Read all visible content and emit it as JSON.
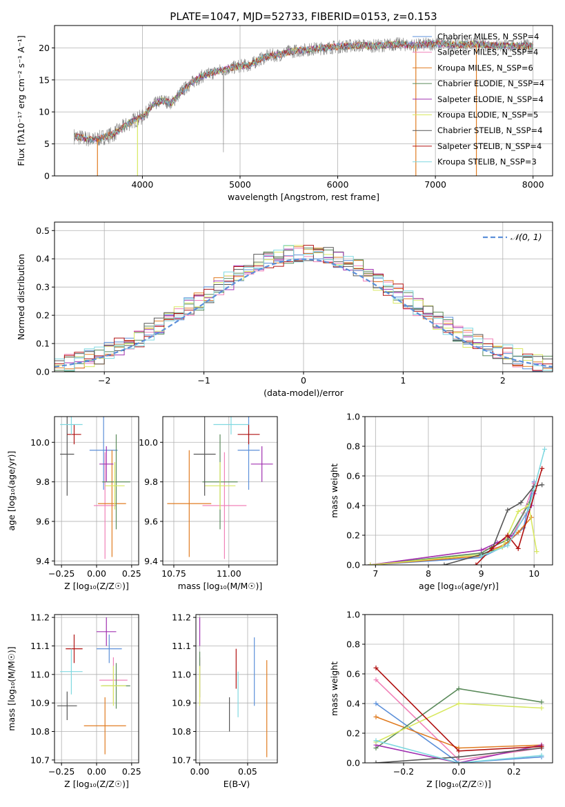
{
  "figure_title": "PLATE=1047, MJD=52733, FIBERID=0153, z=0.153",
  "colors": {
    "Chabrier MILES": "#5b8fd9",
    "Salpeter MILES": "#f080b8",
    "Kroupa MILES": "#e07b20",
    "Chabrier ELODIE": "#5a8a5a",
    "Salpeter ELODIE": "#a030b0",
    "Kroupa ELODIE": "#d8e860",
    "Chabrier STELIB": "#555555",
    "Salpeter STELIB": "#b01010",
    "Kroupa STELIB": "#7fd8e0",
    "data": "#808080",
    "normal": "#5b8fd9"
  },
  "chart_data": [
    {
      "id": "spectrum",
      "type": "line",
      "xlabel": "wavelength [Angstrom, rest frame]",
      "ylabel": "Flux [fλ10⁻¹⁷ erg cm⁻² s⁻¹ A⁻¹]",
      "xlim": [
        3100,
        8200
      ],
      "ylim": [
        0,
        23.5
      ],
      "xticks": [
        4000,
        5000,
        6000,
        7000,
        8000
      ],
      "yticks": [
        0,
        5,
        10,
        15,
        20
      ],
      "legend": [
        "Chabrier MILES, N_SSP=4",
        "Salpeter MILES, N_SSP=4",
        "Kroupa MILES, N_SSP=6",
        "Chabrier ELODIE, N_SSP=4",
        "Salpeter ELODIE, N_SSP=4",
        "Kroupa ELODIE, N_SSP=5",
        "Chabrier STELIB, N_SSP=4",
        "Salpeter STELIB, N_SSP=4",
        "Kroupa STELIB, N_SSP=3"
      ],
      "legend_position": "right",
      "continuum": [
        [
          3300,
          6.2
        ],
        [
          3500,
          5.6
        ],
        [
          3700,
          6.5
        ],
        [
          3900,
          8.6
        ],
        [
          4000,
          9.2
        ],
        [
          4100,
          11.0
        ],
        [
          4200,
          11.8
        ],
        [
          4300,
          11.4
        ],
        [
          4400,
          13.2
        ],
        [
          4500,
          14.5
        ],
        [
          4600,
          15.5
        ],
        [
          4700,
          16.0
        ],
        [
          4800,
          16.5
        ],
        [
          4900,
          16.8
        ],
        [
          5000,
          17.2
        ],
        [
          5100,
          17.3
        ],
        [
          5200,
          18.2
        ],
        [
          5300,
          18.8
        ],
        [
          5400,
          18.9
        ],
        [
          5500,
          19.4
        ],
        [
          5600,
          19.6
        ],
        [
          5800,
          19.9
        ],
        [
          6000,
          20.2
        ],
        [
          6200,
          20.4
        ],
        [
          6400,
          20.3
        ],
        [
          6600,
          20.6
        ],
        [
          6800,
          20.4
        ],
        [
          7000,
          20.7
        ],
        [
          7200,
          20.5
        ],
        [
          7400,
          20.6
        ],
        [
          7600,
          20.4
        ],
        [
          7800,
          20.3
        ],
        [
          8000,
          20.3
        ]
      ],
      "gaps": [
        [
          3540,
          0.0
        ],
        [
          3950,
          0.0
        ],
        [
          6800,
          0.0
        ],
        [
          7420,
          0.0
        ]
      ]
    },
    {
      "id": "residuals",
      "type": "histogram",
      "xlabel": "(data-model)/error",
      "ylabel": "Normed distribution",
      "xlim": [
        -2.5,
        2.5
      ],
      "ylim": [
        0,
        0.53
      ],
      "xticks": [
        -2,
        -1,
        0,
        1,
        2
      ],
      "yticks": [
        0.0,
        0.1,
        0.2,
        0.3,
        0.4,
        0.5
      ],
      "bin_width": 0.1,
      "legend": [
        "𝒩(0, 1)"
      ],
      "legend_position": "top-right"
    },
    {
      "id": "age-vs-Z",
      "type": "errorbar",
      "xlabel": "Z [log₁₀(Z/Z☉)]",
      "ylabel": "age  [log₁₀(age/yr)]",
      "xlim": [
        -0.3,
        0.3
      ],
      "ylim": [
        9.38,
        10.13
      ],
      "xticks": [
        -0.25,
        0.0,
        0.25
      ],
      "yticks": [
        9.4,
        9.6,
        9.8,
        10.0
      ],
      "points": [
        {
          "model": "Chabrier MILES",
          "x": 0.05,
          "xerr": 0.1,
          "y": 9.96,
          "yerr": 0.2
        },
        {
          "model": "Salpeter MILES",
          "x": 0.06,
          "xerr": 0.08,
          "y": 9.68,
          "yerr": 0.27
        },
        {
          "model": "Kroupa MILES",
          "x": 0.11,
          "xerr": 0.1,
          "y": 9.69,
          "yerr": 0.27
        },
        {
          "model": "Chabrier ELODIE",
          "x": 0.14,
          "xerr": 0.1,
          "y": 9.8,
          "yerr": 0.24
        },
        {
          "model": "Salpeter ELODIE",
          "x": 0.07,
          "xerr": 0.05,
          "y": 9.89,
          "yerr": 0.09
        },
        {
          "model": "Kroupa ELODIE",
          "x": 0.13,
          "xerr": 0.07,
          "y": 9.78,
          "yerr": 0.12
        },
        {
          "model": "Chabrier STELIB",
          "x": -0.21,
          "xerr": 0.05,
          "y": 9.94,
          "yerr": 0.21
        },
        {
          "model": "Salpeter STELIB",
          "x": -0.16,
          "xerr": 0.05,
          "y": 10.04,
          "yerr": 0.05
        },
        {
          "model": "Kroupa STELIB",
          "x": -0.18,
          "xerr": 0.08,
          "y": 10.09,
          "yerr": 0.05
        }
      ]
    },
    {
      "id": "age-vs-mass",
      "type": "errorbar",
      "xlabel": "mass [log₁₀(M/M☉)]",
      "ylabel": "",
      "xlim": [
        10.7,
        11.22
      ],
      "ylim": [
        9.38,
        10.13
      ],
      "xticks": [
        10.75,
        11.0
      ],
      "xticklabels": [
        "10.75",
        "11.00"
      ],
      "yticks": [
        9.4,
        9.6,
        9.8,
        10.0
      ],
      "points": [
        {
          "model": "Chabrier MILES",
          "x": 11.09,
          "xerr": 0.05,
          "y": 9.96,
          "yerr": 0.2
        },
        {
          "model": "Salpeter MILES",
          "x": 10.98,
          "xerr": 0.1,
          "y": 9.68,
          "yerr": 0.27
        },
        {
          "model": "Kroupa MILES",
          "x": 10.82,
          "xerr": 0.1,
          "y": 9.69,
          "yerr": 0.27
        },
        {
          "model": "Chabrier ELODIE",
          "x": 10.96,
          "xerr": 0.08,
          "y": 9.8,
          "yerr": 0.24
        },
        {
          "model": "Salpeter ELODIE",
          "x": 11.15,
          "xerr": 0.05,
          "y": 9.89,
          "yerr": 0.09
        },
        {
          "model": "Kroupa ELODIE",
          "x": 10.96,
          "xerr": 0.07,
          "y": 9.78,
          "yerr": 0.12
        },
        {
          "model": "Chabrier STELIB",
          "x": 10.89,
          "xerr": 0.05,
          "y": 9.94,
          "yerr": 0.21
        },
        {
          "model": "Salpeter STELIB",
          "x": 11.09,
          "xerr": 0.05,
          "y": 10.04,
          "yerr": 0.05
        },
        {
          "model": "Kroupa STELIB",
          "x": 11.01,
          "xerr": 0.08,
          "y": 10.09,
          "yerr": 0.05
        }
      ]
    },
    {
      "id": "weight-vs-age",
      "type": "line",
      "xlabel": "age  [log₁₀(age/yr)]",
      "ylabel": "mass weight",
      "xlim": [
        6.8,
        10.35
      ],
      "ylim": [
        0,
        1.0
      ],
      "xticks": [
        7,
        8,
        9,
        10
      ],
      "yticks": [
        0.0,
        0.2,
        0.4,
        0.6,
        0.8,
        1.0
      ],
      "series": [
        {
          "model": "Chabrier MILES",
          "x": [
            6.9,
            9.0,
            9.4,
            9.8,
            10.0
          ],
          "y": [
            0.0,
            0.05,
            0.12,
            0.25,
            0.56
          ]
        },
        {
          "model": "Salpeter MILES",
          "x": [
            6.9,
            9.0,
            9.5,
            9.8,
            10.0
          ],
          "y": [
            0.0,
            0.1,
            0.13,
            0.35,
            0.55
          ]
        },
        {
          "model": "Kroupa MILES",
          "x": [
            6.9,
            9.0,
            9.5,
            9.7,
            9.95
          ],
          "y": [
            0.0,
            0.06,
            0.15,
            0.22,
            0.32
          ]
        },
        {
          "model": "Chabrier ELODIE",
          "x": [
            6.9,
            9.0,
            9.2,
            9.5,
            9.9,
            10.0
          ],
          "y": [
            0.0,
            0.08,
            0.12,
            0.17,
            0.41,
            0.5
          ]
        },
        {
          "model": "Salpeter ELODIE",
          "x": [
            6.9,
            9.0,
            9.3,
            9.6,
            9.95,
            10.0
          ],
          "y": [
            0.0,
            0.1,
            0.15,
            0.2,
            0.4,
            0.48
          ]
        },
        {
          "model": "Kroupa ELODIE",
          "x": [
            6.9,
            9.0,
            9.4,
            9.7,
            9.9,
            10.05
          ],
          "y": [
            0.0,
            0.07,
            0.12,
            0.36,
            0.4,
            0.09
          ]
        },
        {
          "model": "Chabrier STELIB",
          "x": [
            8.3,
            9.0,
            9.2,
            9.5,
            9.75,
            10.0,
            10.15
          ],
          "y": [
            0.0,
            0.07,
            0.1,
            0.37,
            0.42,
            0.53,
            0.54
          ]
        },
        {
          "model": "Salpeter STELIB",
          "x": [
            8.9,
            9.2,
            9.5,
            9.7,
            10.15
          ],
          "y": [
            0.0,
            0.11,
            0.2,
            0.11,
            0.65
          ]
        },
        {
          "model": "Kroupa STELIB",
          "x": [
            9.0,
            9.5,
            9.9,
            10.2
          ],
          "y": [
            0.06,
            0.13,
            0.38,
            0.78
          ]
        }
      ]
    },
    {
      "id": "mass-vs-Z",
      "type": "errorbar",
      "xlabel": "Z [log₁₀(Z/Z☉)]",
      "ylabel": "mass [log₁₀(M/M☉)]",
      "xlim": [
        -0.3,
        0.3
      ],
      "ylim": [
        10.69,
        11.21
      ],
      "xticks": [
        -0.25,
        0.0,
        0.25
      ],
      "yticks": [
        10.7,
        10.8,
        10.9,
        11.0,
        11.1,
        11.2
      ],
      "points": [
        {
          "model": "Chabrier MILES",
          "x": 0.09,
          "xerr": 0.09,
          "y": 11.09,
          "yerr": 0.05
        },
        {
          "model": "Salpeter MILES",
          "x": 0.12,
          "xerr": 0.1,
          "y": 10.98,
          "yerr": 0.08
        },
        {
          "model": "Kroupa MILES",
          "x": 0.06,
          "xerr": 0.15,
          "y": 10.82,
          "yerr": 0.1
        },
        {
          "model": "Chabrier ELODIE",
          "x": 0.14,
          "xerr": 0.1,
          "y": 10.96,
          "yerr": 0.08
        },
        {
          "model": "Salpeter ELODIE",
          "x": 0.07,
          "xerr": 0.07,
          "y": 11.15,
          "yerr": 0.05
        },
        {
          "model": "Kroupa ELODIE",
          "x": 0.12,
          "xerr": 0.09,
          "y": 10.96,
          "yerr": 0.07
        },
        {
          "model": "Chabrier STELIB",
          "x": -0.21,
          "xerr": 0.07,
          "y": 10.89,
          "yerr": 0.05
        },
        {
          "model": "Salpeter STELIB",
          "x": -0.16,
          "xerr": 0.06,
          "y": 11.09,
          "yerr": 0.05
        },
        {
          "model": "Kroupa STELIB",
          "x": -0.18,
          "xerr": 0.08,
          "y": 11.01,
          "yerr": 0.08
        }
      ]
    },
    {
      "id": "mass-vs-EBV",
      "type": "errorbar",
      "xlabel": "E(B-V)",
      "ylabel": "",
      "xlim": [
        -0.004,
        0.081
      ],
      "ylim": [
        10.69,
        11.21
      ],
      "xticks": [
        0.0,
        0.05
      ],
      "xticklabels": [
        "0.00",
        "0.05"
      ],
      "yticks": [
        10.7,
        10.8,
        10.9,
        11.0,
        11.1,
        11.2
      ],
      "points": [
        {
          "model": "Chabrier MILES",
          "x": 0.057,
          "xerr": 0.0,
          "y": 11.01,
          "yerr": 0.12
        },
        {
          "model": "Salpeter MILES",
          "x": 0.0,
          "xerr": 0.0,
          "y": 10.98,
          "yerr": 0.08
        },
        {
          "model": "Kroupa MILES",
          "x": 0.07,
          "xerr": 0.0,
          "y": 10.88,
          "yerr": 0.17
        },
        {
          "model": "Chabrier ELODIE",
          "x": 0.0,
          "xerr": 0.0,
          "y": 11.0,
          "yerr": 0.08
        },
        {
          "model": "Salpeter ELODIE",
          "x": 0.0,
          "xerr": 0.0,
          "y": 11.15,
          "yerr": 0.05
        },
        {
          "model": "Kroupa ELODIE",
          "x": 0.0,
          "xerr": 0.0,
          "y": 10.96,
          "yerr": 0.07
        },
        {
          "model": "Chabrier STELIB",
          "x": 0.031,
          "xerr": 0.0,
          "y": 10.86,
          "yerr": 0.06
        },
        {
          "model": "Salpeter STELIB",
          "x": 0.038,
          "xerr": 0.0,
          "y": 11.02,
          "yerr": 0.07
        },
        {
          "model": "Kroupa STELIB",
          "x": 0.04,
          "xerr": 0.0,
          "y": 10.93,
          "yerr": 0.08
        }
      ]
    },
    {
      "id": "weight-vs-Z",
      "type": "line",
      "xlabel": "Z [log₁₀(Z/Z☉)]",
      "ylabel": "mass weight",
      "xlim": [
        -0.34,
        0.34
      ],
      "ylim": [
        0,
        1.0
      ],
      "xticks": [
        -0.2,
        0.0,
        0.2
      ],
      "yticks": [
        0.0,
        0.2,
        0.4,
        0.6,
        0.8,
        1.0
      ],
      "series": [
        {
          "model": "Chabrier MILES",
          "x": [
            -0.3,
            0.0,
            0.3
          ],
          "y": [
            0.4,
            0.0,
            0.04
          ]
        },
        {
          "model": "Salpeter MILES",
          "x": [
            -0.3,
            0.0,
            0.3
          ],
          "y": [
            0.56,
            0.02,
            0.1
          ]
        },
        {
          "model": "Kroupa MILES",
          "x": [
            -0.3,
            0.0,
            0.3
          ],
          "y": [
            0.31,
            0.1,
            0.12
          ]
        },
        {
          "model": "Chabrier ELODIE",
          "x": [
            -0.3,
            0.0,
            0.3
          ],
          "y": [
            0.1,
            0.5,
            0.41
          ]
        },
        {
          "model": "Salpeter ELODIE",
          "x": [
            -0.3,
            0.0,
            0.3
          ],
          "y": [
            0.12,
            0.0,
            0.12
          ]
        },
        {
          "model": "Kroupa ELODIE",
          "x": [
            -0.3,
            0.0,
            0.3
          ],
          "y": [
            0.14,
            0.4,
            0.37
          ]
        },
        {
          "model": "Chabrier STELIB",
          "x": [
            -0.3,
            0.0,
            0.3
          ],
          "y": [
            0.0,
            0.04,
            0.1
          ]
        },
        {
          "model": "Salpeter STELIB",
          "x": [
            -0.3,
            0.0,
            0.3
          ],
          "y": [
            0.64,
            0.08,
            0.11
          ]
        },
        {
          "model": "Kroupa STELIB",
          "x": [
            -0.3,
            0.0,
            0.3
          ],
          "y": [
            0.15,
            0.0,
            0.05
          ]
        }
      ]
    }
  ]
}
